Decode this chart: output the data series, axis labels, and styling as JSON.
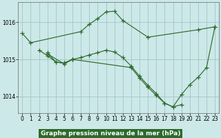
{
  "series": [
    {
      "x": [
        0,
        1,
        7,
        8,
        9,
        10,
        11,
        12,
        15,
        21,
        23
      ],
      "y": [
        1015.7,
        1015.45,
        1015.75,
        1015.95,
        1016.1,
        1016.28,
        1016.3,
        1016.05,
        1015.6,
        1015.8,
        1015.88
      ]
    },
    {
      "x": [
        2,
        3,
        4,
        5,
        6
      ],
      "y": [
        1015.25,
        1015.1,
        1014.93,
        1014.9,
        1015.0
      ]
    },
    {
      "x": [
        3,
        4,
        5,
        6,
        7,
        8,
        9,
        10,
        11,
        12,
        13,
        14,
        15,
        16,
        17,
        18,
        19
      ],
      "y": [
        1015.18,
        1014.93,
        1014.9,
        1015.0,
        1015.05,
        1015.12,
        1015.18,
        1015.25,
        1015.2,
        1015.05,
        1014.82,
        1014.55,
        1014.3,
        1014.08,
        1013.82,
        1013.72,
        1013.78
      ]
    },
    {
      "x": [
        3,
        5,
        6,
        13,
        14,
        15,
        16,
        17,
        18,
        19,
        20,
        21,
        22,
        23
      ],
      "y": [
        1015.15,
        1014.88,
        1015.0,
        1014.78,
        1014.5,
        1014.25,
        1014.03,
        1013.82,
        1013.72,
        1014.05,
        1014.32,
        1014.52,
        1014.78,
        1015.88
      ]
    }
  ],
  "line_color": "#2d6a2d",
  "marker": "+",
  "marker_size": 4,
  "marker_lw": 0.9,
  "line_width": 0.85,
  "bg_color": "#cce8e8",
  "plot_bg": "#cce8e8",
  "grid_color": "#9bbfbf",
  "title": "Graphe pression niveau de la mer (hPa)",
  "xlim": [
    -0.5,
    23.5
  ],
  "ylim": [
    1013.55,
    1016.55
  ],
  "yticks": [
    1014,
    1015,
    1016
  ],
  "xticks": [
    0,
    1,
    2,
    3,
    4,
    5,
    6,
    7,
    8,
    9,
    10,
    11,
    12,
    13,
    14,
    15,
    16,
    17,
    18,
    19,
    20,
    21,
    22,
    23
  ],
  "title_fontsize": 6.5,
  "tick_fontsize": 5.5,
  "title_bg": "#2d6a2d",
  "title_fg": "white"
}
